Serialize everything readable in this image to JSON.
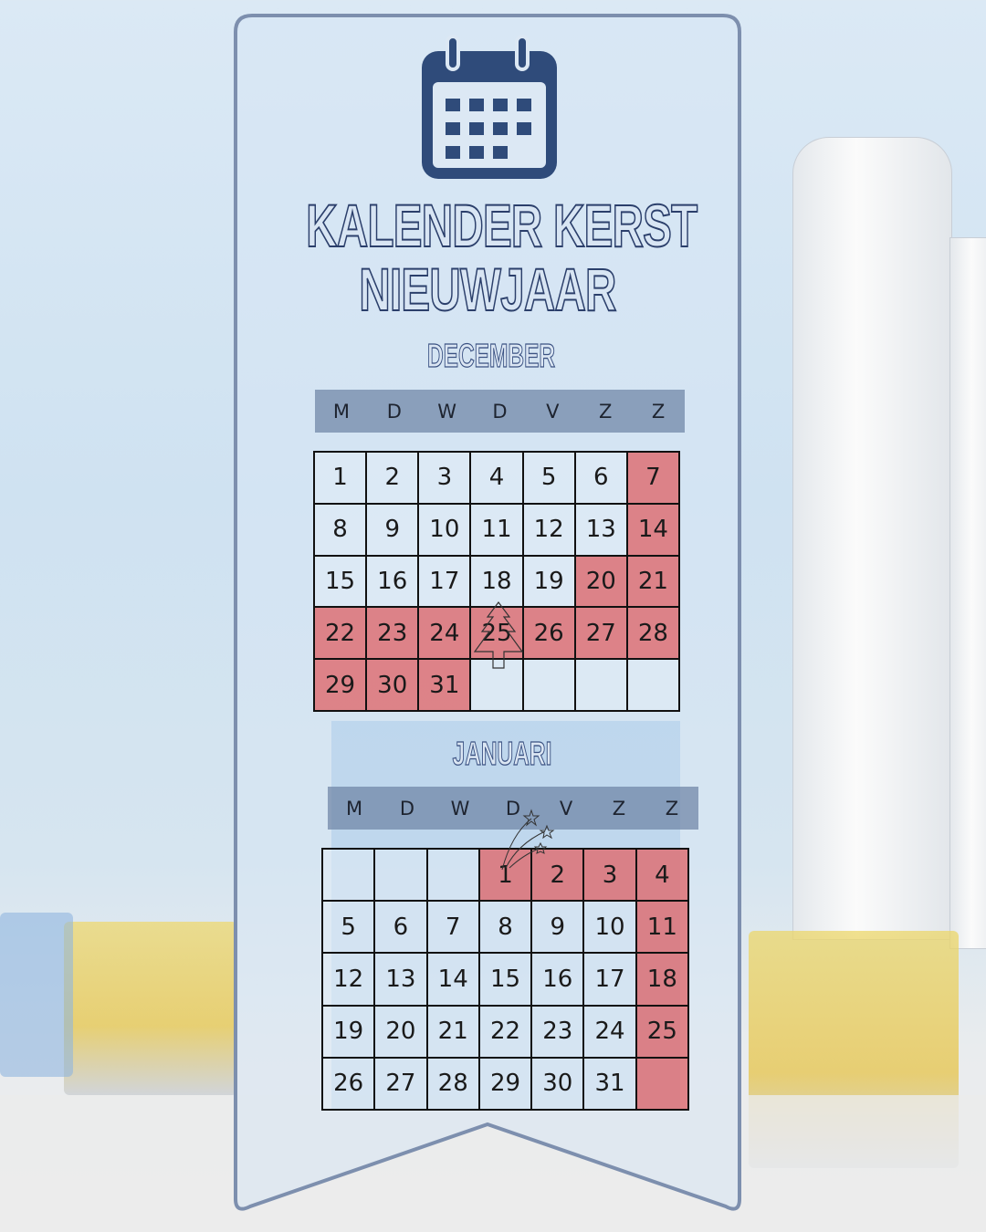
{
  "title": {
    "line1": "KALENDER KERST",
    "line2": "NIEUWJAAR"
  },
  "icons": {
    "header": "calendar-icon",
    "december_25": "christmas-tree-icon",
    "january_1": "shooting-stars-icon"
  },
  "colors": {
    "highlight": "#de6c70",
    "header_bar": "#6e84a5",
    "icon": "#2f4b7a",
    "banner_border": "#7d8fae"
  },
  "weekdays": [
    "M",
    "D",
    "W",
    "D",
    "V",
    "Z",
    "Z"
  ],
  "months": [
    {
      "name": "DECEMBER",
      "leading_blanks": 0,
      "days": 31,
      "trailing_blanks": 4,
      "highlighted": [
        7,
        14,
        20,
        21,
        22,
        23,
        24,
        25,
        26,
        27,
        28,
        29,
        30,
        31
      ],
      "highlight_trailing": false
    },
    {
      "name": "JANUARI",
      "leading_blanks": 3,
      "days": 31,
      "trailing_blanks": 1,
      "highlighted": [
        1,
        2,
        3,
        4,
        11,
        18,
        25
      ],
      "highlight_trailing": true
    }
  ]
}
